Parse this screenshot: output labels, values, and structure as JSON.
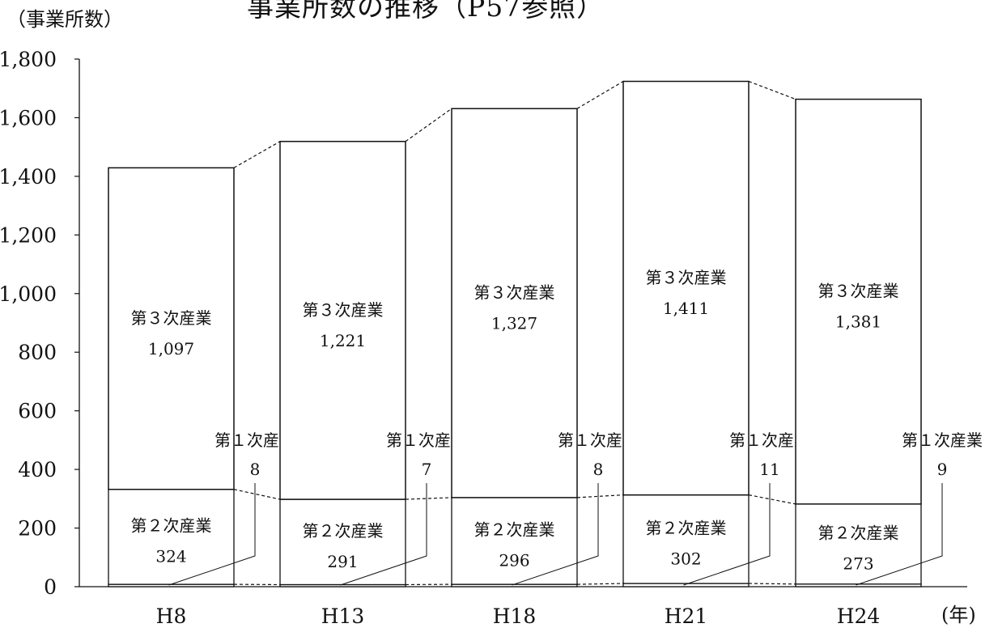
{
  "title": "事業所数の推移（P57参照）",
  "y_unit": "（事業所数）",
  "x_unit": "(年)",
  "chart_data": {
    "type": "bar",
    "stacked": true,
    "categories": [
      "H8",
      "H13",
      "H18",
      "H21",
      "H24"
    ],
    "ylim": [
      0,
      1800
    ],
    "yticks": [
      "0",
      "200",
      "400",
      "600",
      "800",
      "1,000",
      "1,200",
      "1,400",
      "1,600",
      "1,800"
    ],
    "ytick_values": [
      0,
      200,
      400,
      600,
      800,
      1000,
      1200,
      1400,
      1600,
      1800
    ],
    "grid": false,
    "series": [
      {
        "name": "第１次産業",
        "values": [
          8,
          7,
          8,
          11,
          9
        ],
        "labels": [
          "8",
          "7",
          "8",
          "11",
          "9"
        ]
      },
      {
        "name": "第２次産業",
        "values": [
          324,
          291,
          296,
          302,
          273
        ],
        "labels": [
          "324",
          "291",
          "296",
          "302",
          "273"
        ]
      },
      {
        "name": "第３次産業",
        "values": [
          1097,
          1221,
          1327,
          1411,
          1381
        ],
        "labels": [
          "1,097",
          "1,221",
          "1,327",
          "1,411",
          "1,381"
        ]
      }
    ],
    "colors": {
      "bar_fill": "#ffffff",
      "stroke": "#111111"
    }
  }
}
